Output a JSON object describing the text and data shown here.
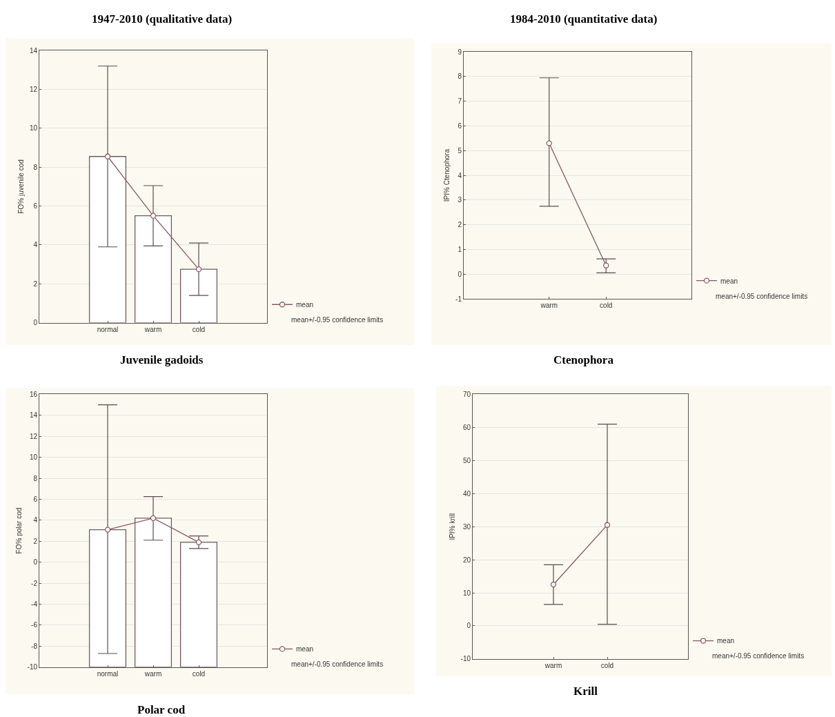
{
  "chart_data": [
    {
      "type": "bar",
      "title": "1947-2010 (qualitative data)",
      "ylabel": "FO% juvenile cod",
      "annotations": [
        "Juvenile gadoids",
        "mean+/-0.95 confidence limits"
      ],
      "categories": [
        null,
        "normal",
        "warm",
        "cold",
        null
      ],
      "ylim": [
        0,
        14
      ],
      "yticks": [
        0,
        2,
        4,
        6,
        8,
        10,
        12,
        14
      ],
      "grid": "y",
      "legend": "bottom right",
      "series": [
        {
          "color": "#ffffff",
          "values": [
            null,
            8.55,
            5.5,
            2.75,
            null
          ]
        },
        {
          "type": "line",
          "name": "mean",
          "color": "#8a5565",
          "marker": "circle",
          "line_style": "solid",
          "values": [
            null,
            8.55,
            5.5,
            2.75,
            null
          ],
          "errors": [
            null,
            [
              3.9,
              13.2
            ],
            [
              3.95,
              7.05
            ],
            [
              1.4,
              4.1
            ],
            null
          ]
        }
      ]
    },
    {
      "type": "line",
      "title": "1984-2010 (quantitative data)",
      "ylabel": "IPI% Ctenophora",
      "annotations": [
        "Ctenophora",
        "mean+/-0.95 confidence limits"
      ],
      "categories": [
        null,
        "warm",
        "cold",
        null
      ],
      "ylim": [
        -1,
        9
      ],
      "yticks": [
        -1,
        0,
        1,
        2,
        3,
        4,
        5,
        6,
        7,
        8,
        9
      ],
      "grid": "y",
      "legend": "bottom right",
      "series": [
        {
          "name": "mean",
          "color": "#8a5565",
          "marker": "circle",
          "line_style": "solid",
          "values": [
            null,
            5.3,
            0.35,
            null
          ],
          "errors": [
            null,
            [
              2.75,
              7.95
            ],
            [
              0.05,
              0.62
            ],
            null
          ]
        }
      ]
    },
    {
      "type": "bar",
      "ylabel": "FO% polar cod",
      "annotations": [
        "Polar cod",
        "mean+/-0.95 confidence limits"
      ],
      "categories": [
        null,
        "normal",
        "warm",
        "cold",
        null
      ],
      "ylim": [
        -10,
        16
      ],
      "yticks": [
        -10,
        -8,
        -6,
        -4,
        -2,
        0,
        2,
        4,
        6,
        8,
        10,
        12,
        14,
        16
      ],
      "grid": "y",
      "legend": "bottom right",
      "series": [
        {
          "color": "#ffffff",
          "base": [
            null,
            -10,
            -10,
            -10,
            null
          ],
          "values": [
            null,
            13.1,
            14.2,
            11.9,
            null
          ]
        },
        {
          "type": "line",
          "name": "mean",
          "color": "#8a5565",
          "marker": "circle",
          "line_style": "solid",
          "values": [
            null,
            3.1,
            4.2,
            1.9,
            null
          ],
          "errors": [
            null,
            [
              -8.7,
              15.0
            ],
            [
              2.1,
              6.25
            ],
            [
              1.3,
              2.5
            ],
            null
          ]
        }
      ]
    },
    {
      "type": "line",
      "ylabel": "IPI% krill",
      "annotations": [
        "Krill",
        "mean+/-0.95 confidence limits"
      ],
      "categories": [
        null,
        "warm",
        "cold",
        null
      ],
      "ylim": [
        -10,
        70
      ],
      "yticks": [
        -10,
        0,
        10,
        20,
        30,
        40,
        50,
        60,
        70
      ],
      "grid": "y",
      "legend": "bottom right",
      "series": [
        {
          "name": "mean",
          "color": "#8a5565",
          "marker": "circle",
          "line_style": "solid",
          "values": [
            null,
            12.5,
            30.5,
            null
          ],
          "errors": [
            null,
            [
              6.5,
              18.5
            ],
            [
              0.5,
              61
            ],
            null
          ]
        }
      ]
    }
  ]
}
